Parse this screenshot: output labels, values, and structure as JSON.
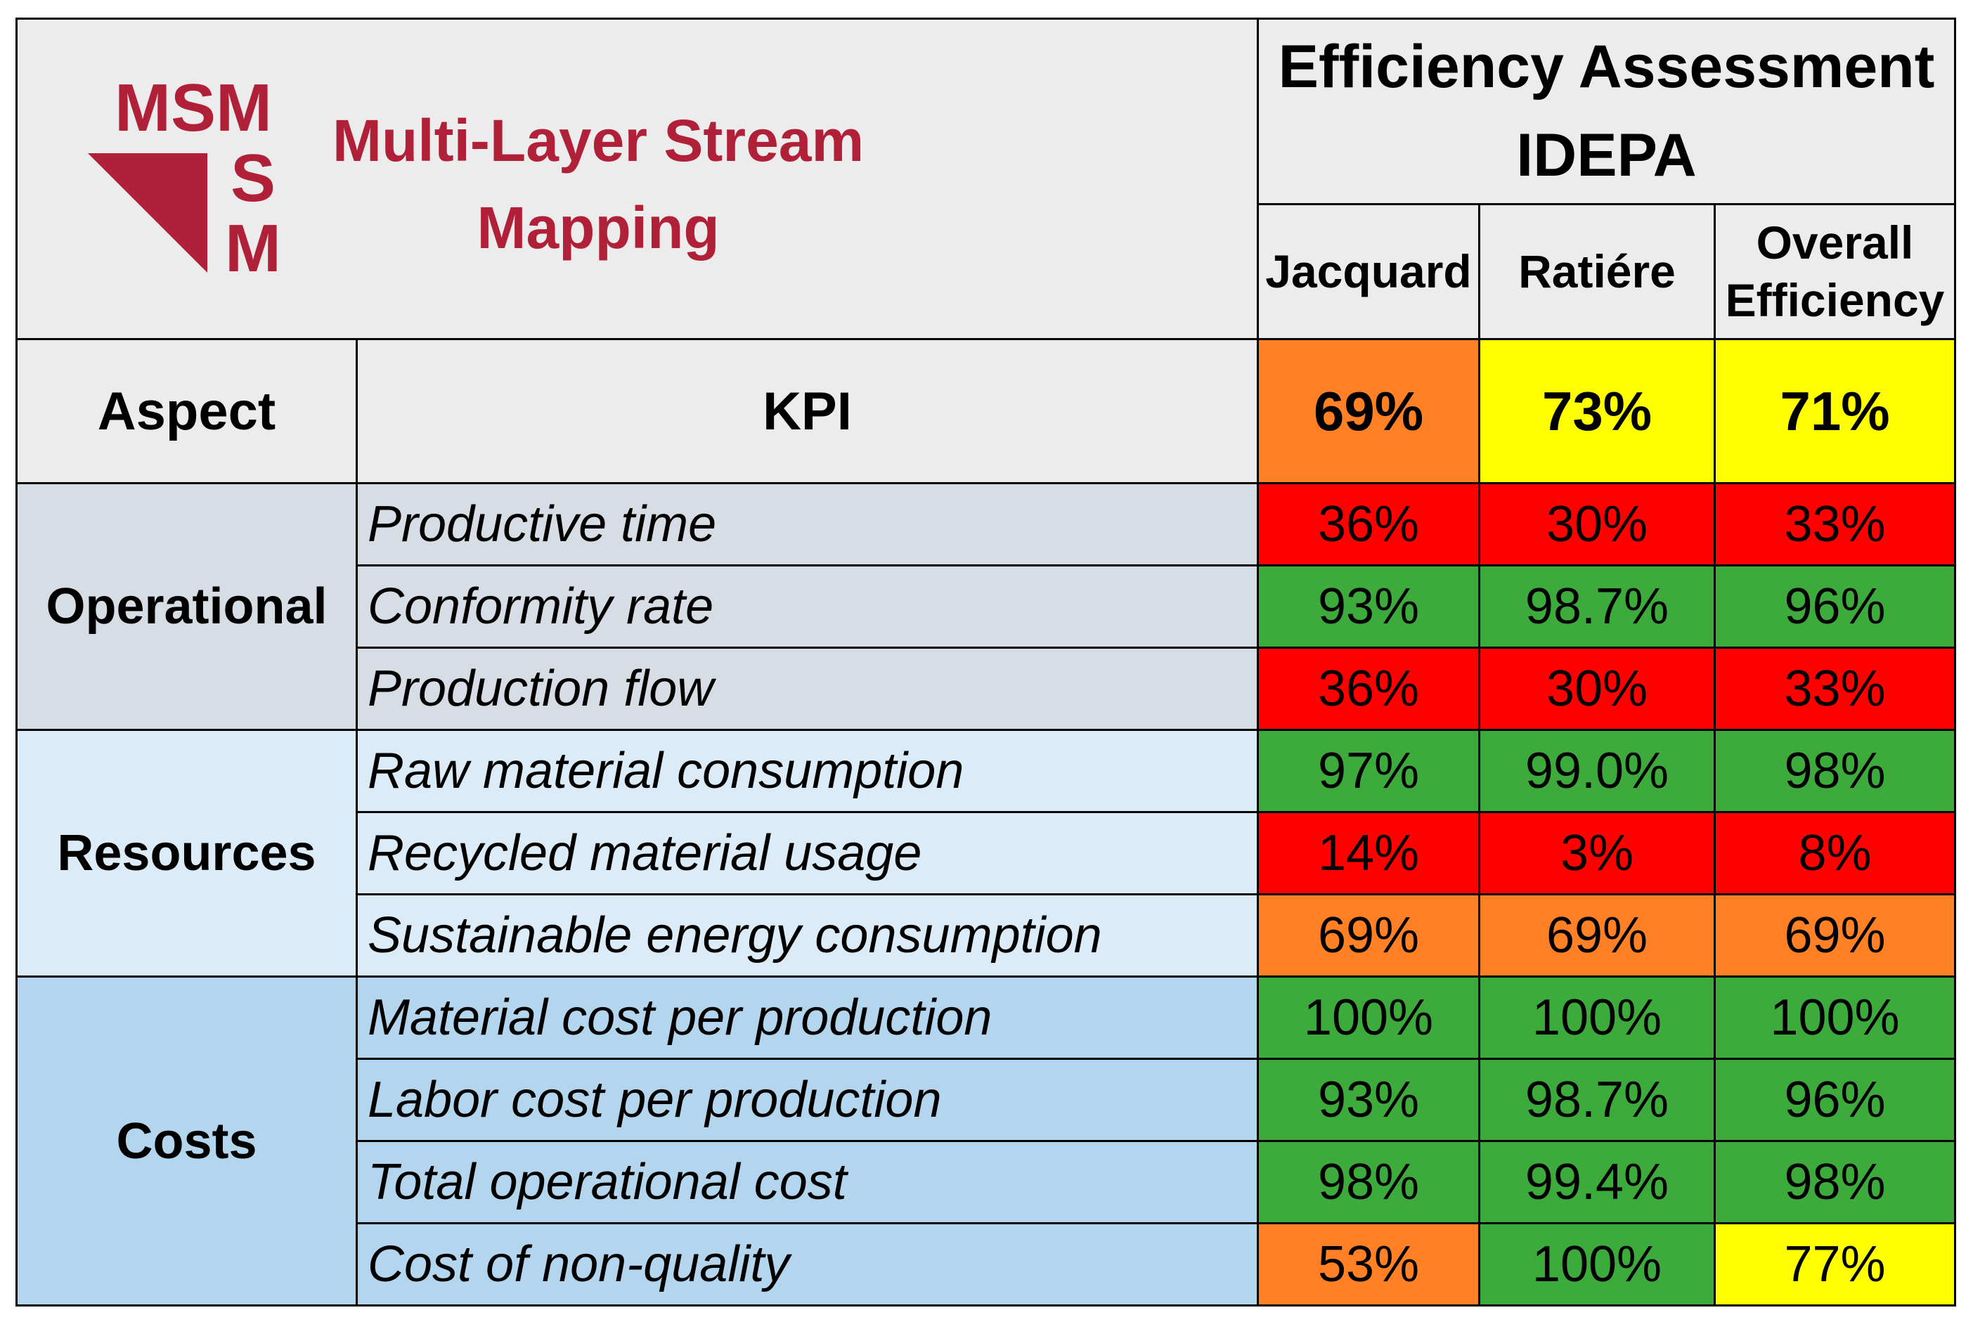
{
  "header": {
    "logo": {
      "mark_text": [
        "MSM",
        "S",
        "M"
      ],
      "title_lines": [
        "Multi-Layer Stream",
        "Mapping"
      ],
      "color": "#b02038"
    },
    "assessment_title_lines": [
      "Efficiency Assessment",
      "IDEPA"
    ],
    "columns": [
      {
        "lines": [
          "Jacquard"
        ]
      },
      {
        "lines": [
          "Ratiére"
        ]
      },
      {
        "lines": [
          "Overall",
          "Efficiency"
        ]
      }
    ],
    "aspect_label": "Aspect",
    "kpi_label": "KPI",
    "summary": [
      {
        "value": "69%",
        "color": "#ff8025"
      },
      {
        "value": "73%",
        "color": "#ffff00"
      },
      {
        "value": "71%",
        "color": "#ffff00"
      }
    ]
  },
  "groups": [
    {
      "aspect": "Operational",
      "rows": [
        {
          "kpi": "Productive time",
          "values": [
            "36%",
            "30%",
            "33%"
          ],
          "status": [
            "red",
            "red",
            "red"
          ]
        },
        {
          "kpi": "Conformity rate",
          "values": [
            "93%",
            "98.7%",
            "96%"
          ],
          "status": [
            "green",
            "green",
            "green"
          ]
        },
        {
          "kpi": "Production flow",
          "values": [
            "36%",
            "30%",
            "33%"
          ],
          "status": [
            "red",
            "red",
            "red"
          ]
        }
      ]
    },
    {
      "aspect": "Resources",
      "rows": [
        {
          "kpi": "Raw material consumption",
          "values": [
            "97%",
            "99.0%",
            "98%"
          ],
          "status": [
            "green",
            "green",
            "green"
          ]
        },
        {
          "kpi": "Recycled material usage",
          "values": [
            "14%",
            "3%",
            "8%"
          ],
          "status": [
            "red",
            "red",
            "red"
          ]
        },
        {
          "kpi": "Sustainable energy consumption",
          "values": [
            "69%",
            "69%",
            "69%"
          ],
          "status": [
            "orange",
            "orange",
            "orange"
          ]
        }
      ]
    },
    {
      "aspect": "Costs",
      "rows": [
        {
          "kpi": "Material cost per production",
          "values": [
            "100%",
            "100%",
            "100%"
          ],
          "status": [
            "green",
            "green",
            "green"
          ]
        },
        {
          "kpi": "Labor cost per production",
          "values": [
            "93%",
            "98.7%",
            "96%"
          ],
          "status": [
            "green",
            "green",
            "green"
          ]
        },
        {
          "kpi": "Total operational cost",
          "values": [
            "98%",
            "99.4%",
            "98%"
          ],
          "status": [
            "green",
            "green",
            "green"
          ]
        },
        {
          "kpi": "Cost of non-quality",
          "values": [
            "53%",
            "100%",
            "77%"
          ],
          "status": [
            "orange",
            "green",
            "yellow"
          ]
        }
      ]
    }
  ],
  "colors": {
    "red": "#ff0000",
    "green": "#3cab3c",
    "orange": "#ff8025",
    "yellow": "#ffff00"
  }
}
